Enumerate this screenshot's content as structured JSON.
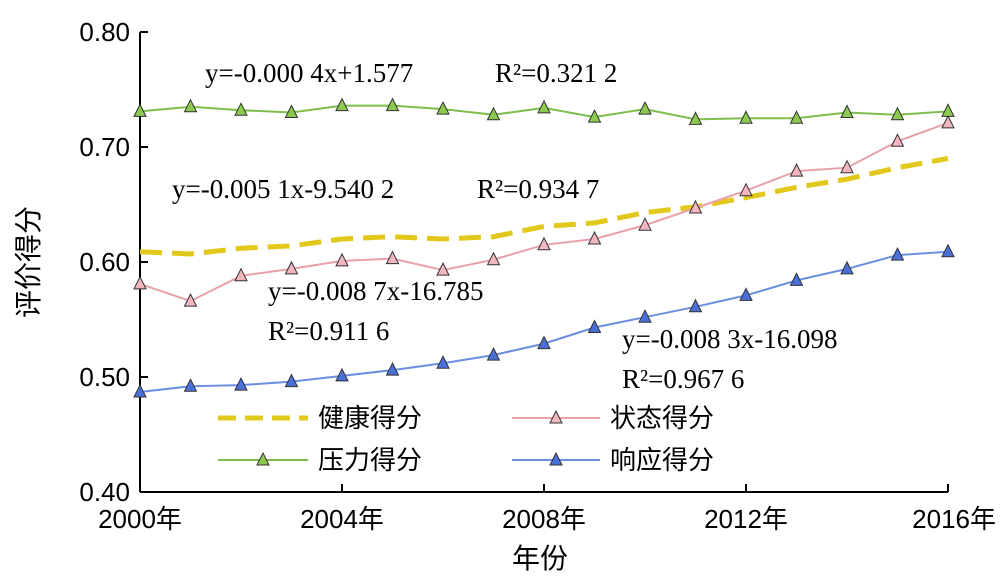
{
  "chart_data": {
    "type": "line",
    "xlabel": "年份",
    "ylabel": "评价得分",
    "xlim": [
      2000,
      2016
    ],
    "ylim": [
      0.4,
      0.8
    ],
    "x_tick_labels": [
      "2000年",
      "2004年",
      "2008年",
      "2012年",
      "2016年"
    ],
    "x_tick_values": [
      2000,
      2004,
      2008,
      2012,
      2016
    ],
    "y_tick_labels": [
      "0.40",
      "0.50",
      "0.60",
      "0.70",
      "0.80"
    ],
    "y_tick_values": [
      0.4,
      0.5,
      0.6,
      0.7,
      0.8
    ],
    "x": [
      2000,
      2001,
      2002,
      2003,
      2004,
      2005,
      2006,
      2007,
      2008,
      2009,
      2010,
      2011,
      2012,
      2013,
      2014,
      2015,
      2016
    ],
    "series": [
      {
        "name": "健康得分",
        "color": "#e2c81a",
        "style": "dashed",
        "marker": "none",
        "values": [
          0.609,
          0.607,
          0.612,
          0.614,
          0.62,
          0.622,
          0.62,
          0.622,
          0.631,
          0.634,
          0.643,
          0.648,
          0.656,
          0.665,
          0.672,
          0.682,
          0.69
        ]
      },
      {
        "name": "状态得分",
        "color": "#e8a0aa",
        "marker_fill": "#f2b6bf",
        "style": "solid",
        "marker": "triangle",
        "values": [
          0.581,
          0.566,
          0.588,
          0.594,
          0.601,
          0.603,
          0.593,
          0.602,
          0.615,
          0.62,
          0.632,
          0.647,
          0.662,
          0.679,
          0.682,
          0.705,
          0.721
        ]
      },
      {
        "name": "压力得分",
        "color": "#7cbf4e",
        "marker_fill": "#8cc94f",
        "style": "solid",
        "marker": "triangle",
        "values": [
          0.731,
          0.735,
          0.732,
          0.73,
          0.736,
          0.736,
          0.733,
          0.728,
          0.734,
          0.726,
          0.733,
          0.724,
          0.725,
          0.725,
          0.73,
          0.728,
          0.731
        ]
      },
      {
        "name": "响应得分",
        "color": "#6b8fe0",
        "marker_fill": "#4a6fd8",
        "style": "solid",
        "marker": "triangle",
        "values": [
          0.487,
          0.492,
          0.493,
          0.496,
          0.501,
          0.506,
          0.512,
          0.519,
          0.529,
          0.543,
          0.552,
          0.561,
          0.571,
          0.584,
          0.594,
          0.606,
          0.609
        ]
      }
    ],
    "legend": [
      "健康得分",
      "状态得分",
      "压力得分",
      "响应得分"
    ],
    "annotations": [
      {
        "series": "压力得分",
        "equation": "y=-0.000 4x+1.577",
        "r2": "R²=0.321 2"
      },
      {
        "series": "健康得分",
        "equation": "y=-0.005 1x-9.540 2",
        "r2": "R²=0.934 7"
      },
      {
        "series": "状态得分",
        "equation": "y=-0.008 7x-16.785",
        "r2": "R²=0.911 6"
      },
      {
        "series": "响应得分",
        "equation": "y=-0.008 3x-16.098",
        "r2": "R²=0.967 6"
      }
    ]
  }
}
